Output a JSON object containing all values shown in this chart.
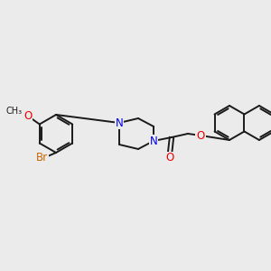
{
  "background_color": "#EBEBEB",
  "bond_color": "#1a1a1a",
  "bond_width": 1.4,
  "atom_colors": {
    "N": "#0000EE",
    "O": "#EE0000",
    "Br": "#CC6600",
    "C": "#1a1a1a"
  },
  "font_size": 8.5,
  "figsize": [
    3.0,
    3.0
  ],
  "dpi": 100
}
